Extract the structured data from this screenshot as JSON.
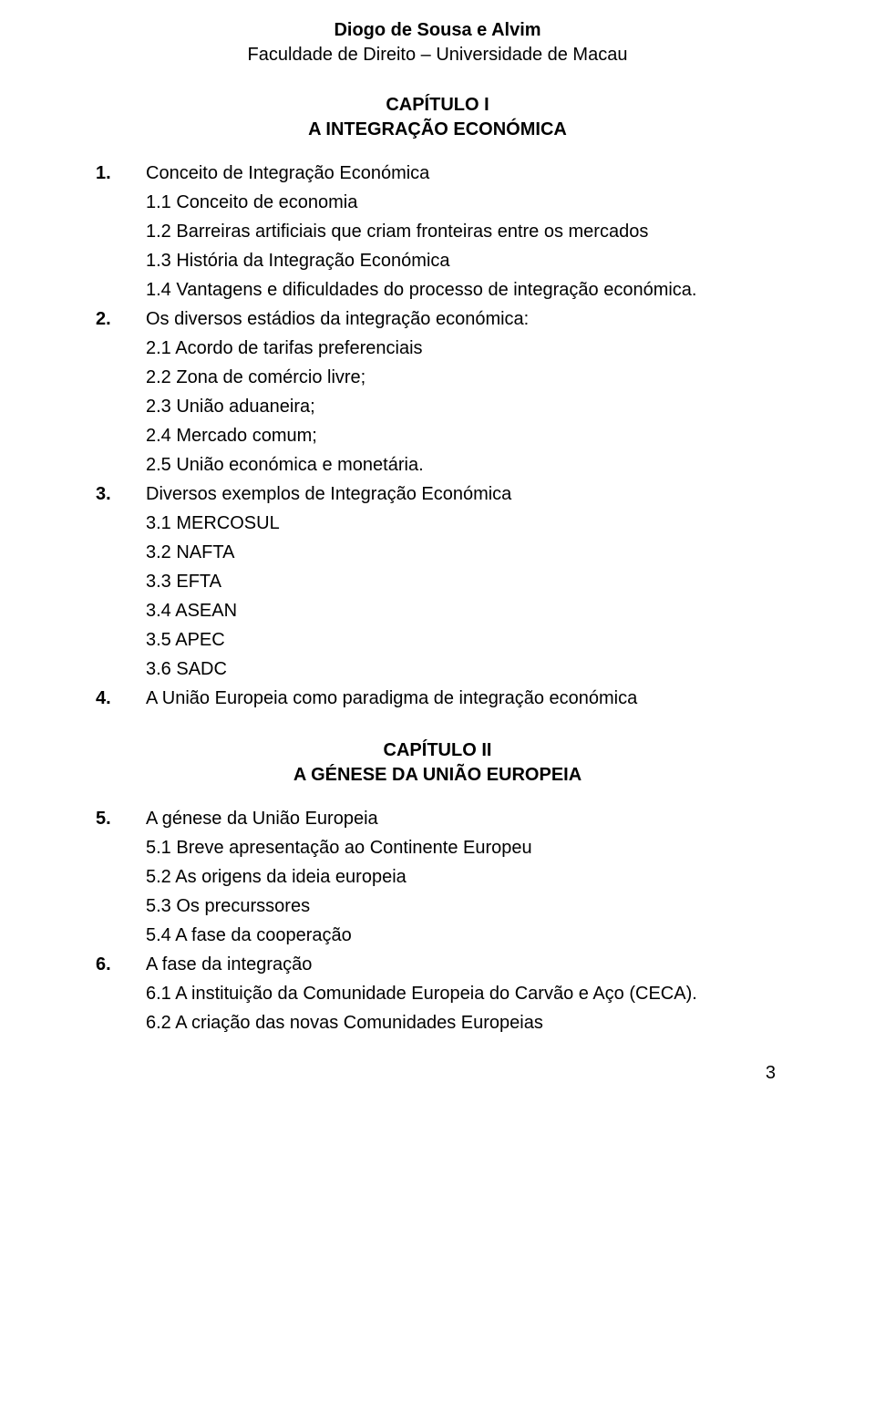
{
  "header": {
    "author": "Diogo de Sousa e Alvim",
    "affiliation": "Faculdade de Direito – Universidade de Macau"
  },
  "chapter1": {
    "label": "CAPÍTULO I",
    "title": "A INTEGRAÇÃO ECONÓMICA"
  },
  "sec1": {
    "n1": "1.",
    "t1": "Conceito de Integração Económica",
    "t1_1": "1.1 Conceito de economia",
    "t1_2": "1.2 Barreiras artificiais que criam fronteiras entre os mercados",
    "t1_3": "1.3 História da Integração Económica",
    "t1_4": "1.4 Vantagens e dificuldades do processo de integração económica.",
    "n2": "2.",
    "t2": "Os diversos estádios da integração económica:",
    "t2_1": "2.1 Acordo de tarifas preferenciais",
    "t2_2": "2.2 Zona de comércio livre;",
    "t2_3": "2.3 União aduaneira;",
    "t2_4": "2.4 Mercado comum;",
    "t2_5": "2.5 União económica e monetária.",
    "n3": "3.",
    "t3": "Diversos exemplos de Integração Económica",
    "t3_1": "3.1 MERCOSUL",
    "t3_2": "3.2 NAFTA",
    "t3_3": "3.3 EFTA",
    "t3_4": "3.4 ASEAN",
    "t3_5": "3.5 APEC",
    "t3_6": "3.6 SADC",
    "n4": "4.",
    "t4": "A União Europeia como paradigma de integração económica"
  },
  "chapter2": {
    "label": "CAPÍTULO II",
    "title": "A GÉNESE DA UNIÃO EUROPEIA"
  },
  "sec2": {
    "n5": "5.",
    "t5": "A génese da União Europeia",
    "t5_1": "5.1 Breve apresentação ao Continente Europeu",
    "t5_2": "5.2 As origens da ideia europeia",
    "t5_3": "5.3 Os precurssores",
    "t5_4": "5.4 A fase da cooperação",
    "n6": "6.",
    "t6": "A fase da integração",
    "t6_1": "6.1 A instituição da Comunidade Europeia do Carvão e Aço (CECA).",
    "t6_2": "6.2 A criação das novas Comunidades Europeias"
  },
  "page_number": "3",
  "colors": {
    "text": "#000000",
    "background": "#ffffff"
  },
  "typography": {
    "body_fontsize_pt": 15,
    "line_height": 1.6,
    "font_family": "Verdana"
  }
}
